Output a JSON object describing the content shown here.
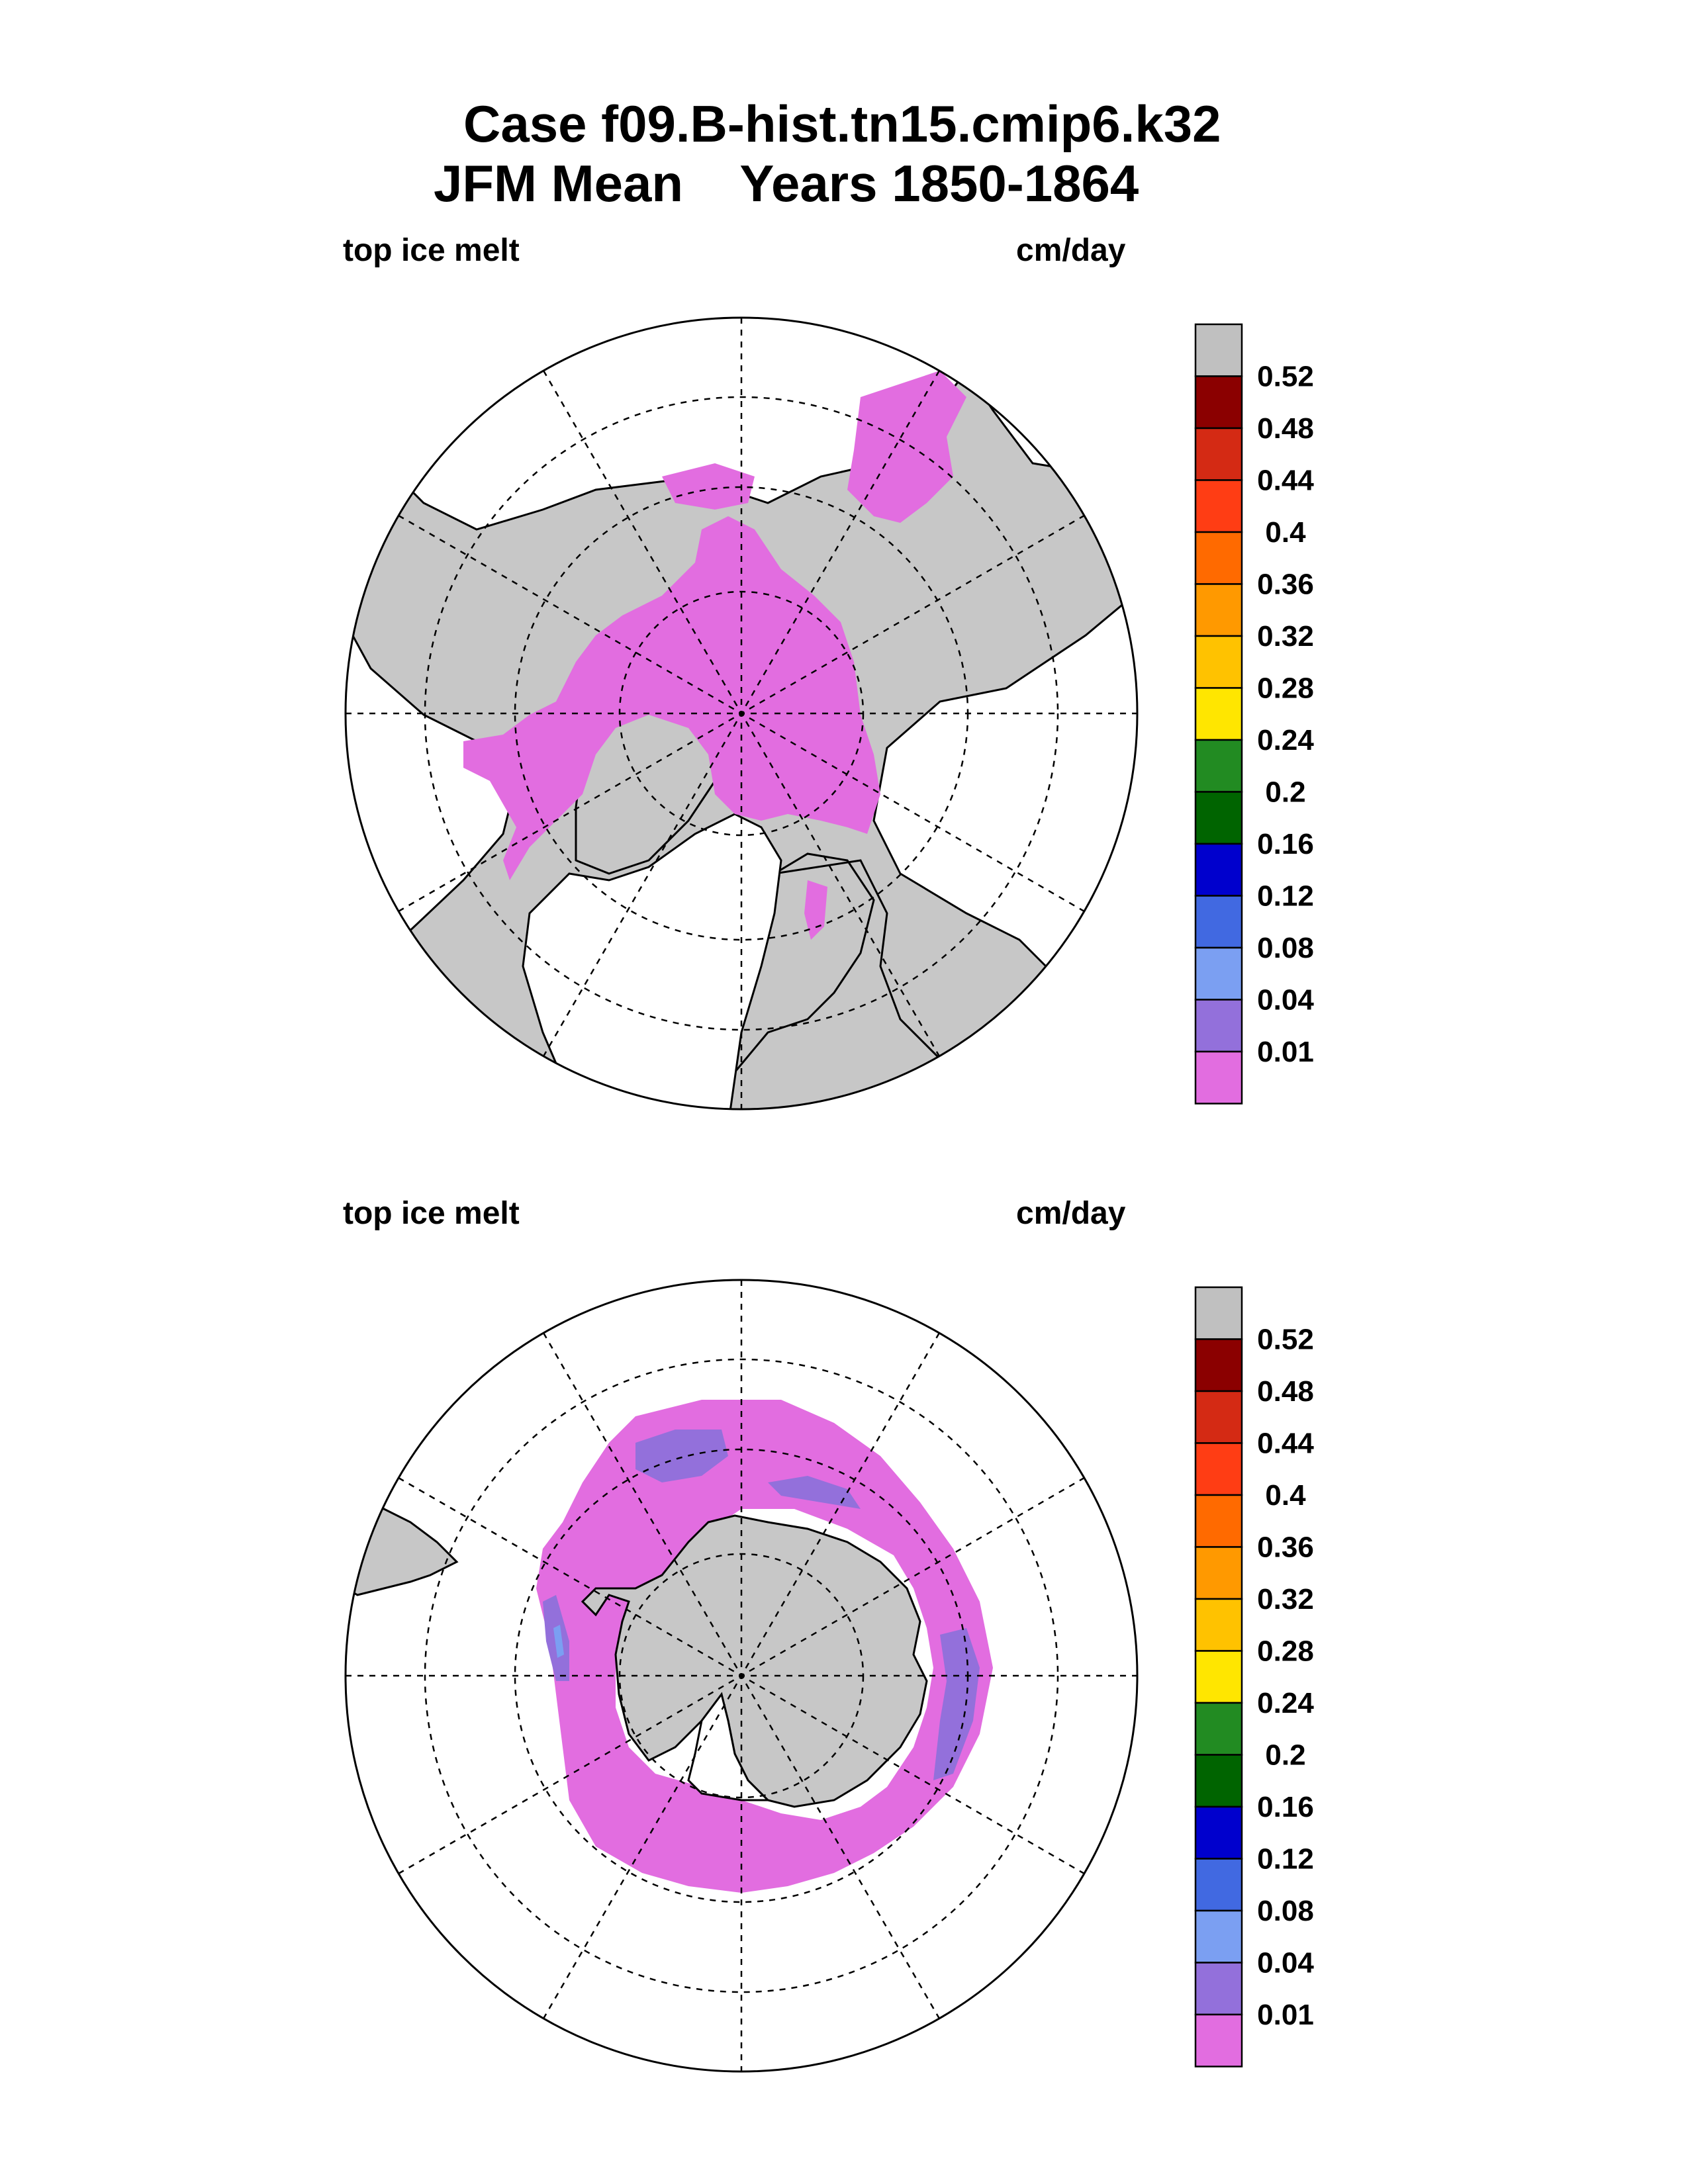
{
  "title": {
    "line1": "Case f09.B-hist.tn15.cmip6.k32",
    "line2": "JFM Mean    Years 1850-1864"
  },
  "panels": [
    {
      "hemisphere": "north",
      "variable": "top ice melt",
      "units": "cm/day"
    },
    {
      "hemisphere": "south",
      "variable": "top ice melt",
      "units": "cm/day"
    }
  ],
  "legend": {
    "levels": [
      "0.52",
      "0.48",
      "0.44",
      "0.4",
      "0.36",
      "0.32",
      "0.28",
      "0.24",
      "0.2",
      "0.16",
      "0.12",
      "0.08",
      "0.04",
      "0.01"
    ],
    "colors": [
      "#c0c0c0",
      "#8b0000",
      "#d42a14",
      "#ff3d14",
      "#ff6a00",
      "#ff9900",
      "#ffc200",
      "#ffe600",
      "#228b22",
      "#006400",
      "#0000cd",
      "#4169e1",
      "#7b9ff2",
      "#9370db",
      "#e26de0"
    ]
  },
  "colors": {
    "land": "#c7c7c7",
    "ice_melt_low": "#e26de0",
    "ice_melt_mid": "#9370db",
    "ice_melt_blue": "#7b9ff2"
  }
}
